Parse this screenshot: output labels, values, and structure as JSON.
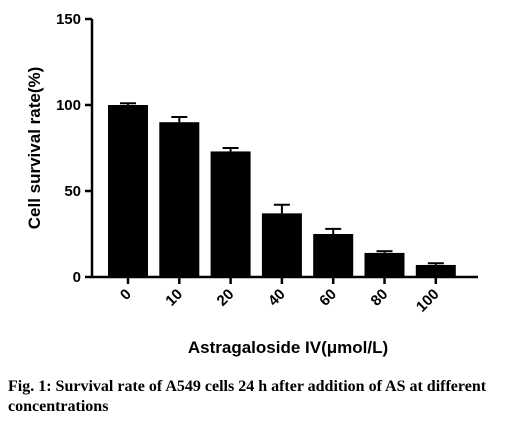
{
  "chart_data": {
    "type": "bar",
    "categories": [
      "0",
      "10",
      "20",
      "40",
      "60",
      "80",
      "100"
    ],
    "values": [
      100,
      90,
      73,
      37,
      25,
      14,
      7
    ],
    "errors": [
      1,
      3,
      2,
      5,
      3,
      1,
      1
    ],
    "xlabel": "Astragaloside IV(μmol/L)",
    "ylabel": "Cell survival rate(%)",
    "ylim": [
      0,
      150
    ],
    "yticks": [
      0,
      50,
      100,
      150
    ],
    "bar_color": "#000000",
    "grid": false,
    "legend": "none"
  },
  "caption": "Fig. 1: Survival rate of A549 cells 24 h after addition of AS at different concentrations"
}
